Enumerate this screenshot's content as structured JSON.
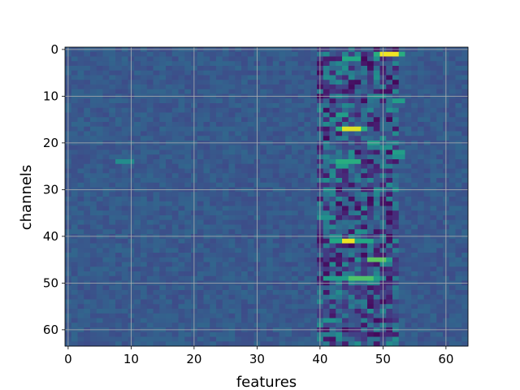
{
  "chart_data": {
    "type": "heatmap",
    "title": "",
    "xlabel": "features",
    "ylabel": "channels",
    "xlim": [
      -0.5,
      63.5
    ],
    "ylim": [
      63.5,
      -0.5
    ],
    "y_inverted": true,
    "grid": true,
    "colormap": "viridis",
    "value_range": [
      0,
      1
    ],
    "background_value": 0.28,
    "x_ticks": [
      0,
      10,
      20,
      30,
      40,
      50,
      60
    ],
    "y_ticks": [
      0,
      10,
      20,
      30,
      40,
      50,
      60
    ],
    "n_features": 64,
    "n_channels": 64,
    "baseline_band": {
      "features": [
        40,
        52
      ],
      "value_range": [
        0.02,
        0.5
      ]
    },
    "highlights": [
      {
        "channel": 1,
        "features": [
          50,
          51,
          52
        ],
        "value": 0.98
      },
      {
        "channel": 1,
        "features": [
          49,
          53
        ],
        "value": 0.62
      },
      {
        "channel": 2,
        "features": [
          44,
          45,
          46
        ],
        "value": 0.6
      },
      {
        "channel": 11,
        "features": [
          52,
          53
        ],
        "value": 0.55
      },
      {
        "channel": 14,
        "features": [
          43,
          44
        ],
        "value": 0.55
      },
      {
        "channel": 17,
        "features": [
          44,
          45,
          46
        ],
        "value": 0.95
      },
      {
        "channel": 17,
        "features": [
          43,
          47
        ],
        "value": 0.62
      },
      {
        "channel": 20,
        "features": [
          48,
          49
        ],
        "value": 0.55
      },
      {
        "channel": 22,
        "features": [
          52,
          53
        ],
        "value": 0.55
      },
      {
        "channel": 23,
        "features": [
          52,
          53
        ],
        "value": 0.5
      },
      {
        "channel": 24,
        "features": [
          43,
          44,
          45,
          46
        ],
        "value": 0.62
      },
      {
        "channel": 24,
        "features": [
          8,
          9,
          10
        ],
        "value": 0.48
      },
      {
        "channel": 25,
        "features": [
          43,
          44
        ],
        "value": 0.55
      },
      {
        "channel": 36,
        "features": [
          40,
          41,
          42
        ],
        "value": 0.5
      },
      {
        "channel": 41,
        "features": [
          44,
          45
        ],
        "value": 0.97
      },
      {
        "channel": 41,
        "features": [
          42,
          43,
          46,
          47,
          48
        ],
        "value": 0.6
      },
      {
        "channel": 45,
        "features": [
          48,
          49,
          50
        ],
        "value": 0.75
      },
      {
        "channel": 45,
        "features": [
          51
        ],
        "value": 0.55
      },
      {
        "channel": 49,
        "features": [
          45,
          46,
          47,
          48
        ],
        "value": 0.72
      },
      {
        "channel": 49,
        "features": [
          41,
          42,
          43,
          44,
          49
        ],
        "value": 0.55
      },
      {
        "channel": 58,
        "features": [
          41,
          42
        ],
        "value": 0.5
      }
    ]
  }
}
